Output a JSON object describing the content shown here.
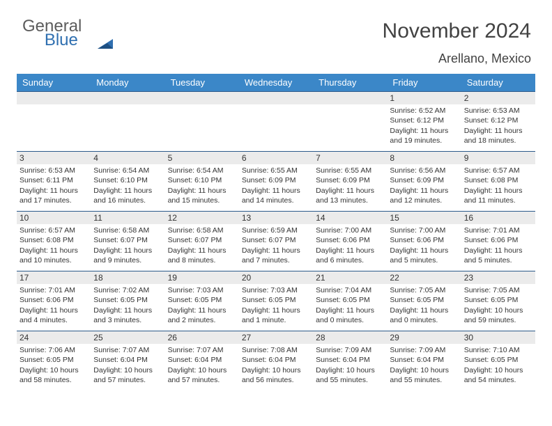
{
  "logo": {
    "part1": "General",
    "part2": "Blue",
    "triangle_color": "#2f6fb0"
  },
  "title": "November 2024",
  "location": "Arellano, Mexico",
  "header_bg": "#3b87c8",
  "border_color": "#2b5a8a",
  "daynum_bg": "#ebebeb",
  "day_headers": [
    "Sunday",
    "Monday",
    "Tuesday",
    "Wednesday",
    "Thursday",
    "Friday",
    "Saturday"
  ],
  "weeks": [
    [
      null,
      null,
      null,
      null,
      null,
      {
        "n": "1",
        "sr": "Sunrise: 6:52 AM",
        "ss": "Sunset: 6:12 PM",
        "d1": "Daylight: 11 hours",
        "d2": "and 19 minutes."
      },
      {
        "n": "2",
        "sr": "Sunrise: 6:53 AM",
        "ss": "Sunset: 6:12 PM",
        "d1": "Daylight: 11 hours",
        "d2": "and 18 minutes."
      }
    ],
    [
      {
        "n": "3",
        "sr": "Sunrise: 6:53 AM",
        "ss": "Sunset: 6:11 PM",
        "d1": "Daylight: 11 hours",
        "d2": "and 17 minutes."
      },
      {
        "n": "4",
        "sr": "Sunrise: 6:54 AM",
        "ss": "Sunset: 6:10 PM",
        "d1": "Daylight: 11 hours",
        "d2": "and 16 minutes."
      },
      {
        "n": "5",
        "sr": "Sunrise: 6:54 AM",
        "ss": "Sunset: 6:10 PM",
        "d1": "Daylight: 11 hours",
        "d2": "and 15 minutes."
      },
      {
        "n": "6",
        "sr": "Sunrise: 6:55 AM",
        "ss": "Sunset: 6:09 PM",
        "d1": "Daylight: 11 hours",
        "d2": "and 14 minutes."
      },
      {
        "n": "7",
        "sr": "Sunrise: 6:55 AM",
        "ss": "Sunset: 6:09 PM",
        "d1": "Daylight: 11 hours",
        "d2": "and 13 minutes."
      },
      {
        "n": "8",
        "sr": "Sunrise: 6:56 AM",
        "ss": "Sunset: 6:09 PM",
        "d1": "Daylight: 11 hours",
        "d2": "and 12 minutes."
      },
      {
        "n": "9",
        "sr": "Sunrise: 6:57 AM",
        "ss": "Sunset: 6:08 PM",
        "d1": "Daylight: 11 hours",
        "d2": "and 11 minutes."
      }
    ],
    [
      {
        "n": "10",
        "sr": "Sunrise: 6:57 AM",
        "ss": "Sunset: 6:08 PM",
        "d1": "Daylight: 11 hours",
        "d2": "and 10 minutes."
      },
      {
        "n": "11",
        "sr": "Sunrise: 6:58 AM",
        "ss": "Sunset: 6:07 PM",
        "d1": "Daylight: 11 hours",
        "d2": "and 9 minutes."
      },
      {
        "n": "12",
        "sr": "Sunrise: 6:58 AM",
        "ss": "Sunset: 6:07 PM",
        "d1": "Daylight: 11 hours",
        "d2": "and 8 minutes."
      },
      {
        "n": "13",
        "sr": "Sunrise: 6:59 AM",
        "ss": "Sunset: 6:07 PM",
        "d1": "Daylight: 11 hours",
        "d2": "and 7 minutes."
      },
      {
        "n": "14",
        "sr": "Sunrise: 7:00 AM",
        "ss": "Sunset: 6:06 PM",
        "d1": "Daylight: 11 hours",
        "d2": "and 6 minutes."
      },
      {
        "n": "15",
        "sr": "Sunrise: 7:00 AM",
        "ss": "Sunset: 6:06 PM",
        "d1": "Daylight: 11 hours",
        "d2": "and 5 minutes."
      },
      {
        "n": "16",
        "sr": "Sunrise: 7:01 AM",
        "ss": "Sunset: 6:06 PM",
        "d1": "Daylight: 11 hours",
        "d2": "and 5 minutes."
      }
    ],
    [
      {
        "n": "17",
        "sr": "Sunrise: 7:01 AM",
        "ss": "Sunset: 6:06 PM",
        "d1": "Daylight: 11 hours",
        "d2": "and 4 minutes."
      },
      {
        "n": "18",
        "sr": "Sunrise: 7:02 AM",
        "ss": "Sunset: 6:05 PM",
        "d1": "Daylight: 11 hours",
        "d2": "and 3 minutes."
      },
      {
        "n": "19",
        "sr": "Sunrise: 7:03 AM",
        "ss": "Sunset: 6:05 PM",
        "d1": "Daylight: 11 hours",
        "d2": "and 2 minutes."
      },
      {
        "n": "20",
        "sr": "Sunrise: 7:03 AM",
        "ss": "Sunset: 6:05 PM",
        "d1": "Daylight: 11 hours",
        "d2": "and 1 minute."
      },
      {
        "n": "21",
        "sr": "Sunrise: 7:04 AM",
        "ss": "Sunset: 6:05 PM",
        "d1": "Daylight: 11 hours",
        "d2": "and 0 minutes."
      },
      {
        "n": "22",
        "sr": "Sunrise: 7:05 AM",
        "ss": "Sunset: 6:05 PM",
        "d1": "Daylight: 11 hours",
        "d2": "and 0 minutes."
      },
      {
        "n": "23",
        "sr": "Sunrise: 7:05 AM",
        "ss": "Sunset: 6:05 PM",
        "d1": "Daylight: 10 hours",
        "d2": "and 59 minutes."
      }
    ],
    [
      {
        "n": "24",
        "sr": "Sunrise: 7:06 AM",
        "ss": "Sunset: 6:05 PM",
        "d1": "Daylight: 10 hours",
        "d2": "and 58 minutes."
      },
      {
        "n": "25",
        "sr": "Sunrise: 7:07 AM",
        "ss": "Sunset: 6:04 PM",
        "d1": "Daylight: 10 hours",
        "d2": "and 57 minutes."
      },
      {
        "n": "26",
        "sr": "Sunrise: 7:07 AM",
        "ss": "Sunset: 6:04 PM",
        "d1": "Daylight: 10 hours",
        "d2": "and 57 minutes."
      },
      {
        "n": "27",
        "sr": "Sunrise: 7:08 AM",
        "ss": "Sunset: 6:04 PM",
        "d1": "Daylight: 10 hours",
        "d2": "and 56 minutes."
      },
      {
        "n": "28",
        "sr": "Sunrise: 7:09 AM",
        "ss": "Sunset: 6:04 PM",
        "d1": "Daylight: 10 hours",
        "d2": "and 55 minutes."
      },
      {
        "n": "29",
        "sr": "Sunrise: 7:09 AM",
        "ss": "Sunset: 6:04 PM",
        "d1": "Daylight: 10 hours",
        "d2": "and 55 minutes."
      },
      {
        "n": "30",
        "sr": "Sunrise: 7:10 AM",
        "ss": "Sunset: 6:05 PM",
        "d1": "Daylight: 10 hours",
        "d2": "and 54 minutes."
      }
    ]
  ]
}
